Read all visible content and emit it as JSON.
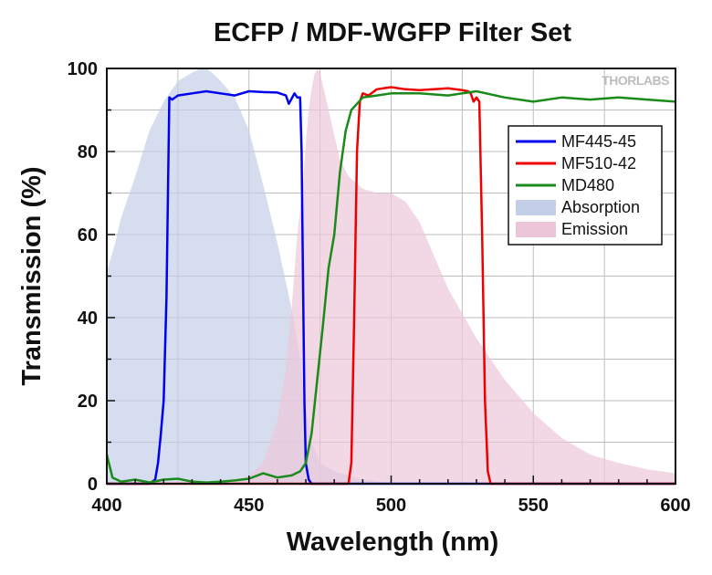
{
  "colors": {
    "MF445-45": "#0000ee",
    "MF510-42": "#ee0000",
    "MD480": "#1a8a1a",
    "Absorption": "#c3cfe8",
    "Emission": "#ecc6d8",
    "grid": "#bdbdbd"
  },
  "chart_data": {
    "type": "line",
    "title": "ECFP / MDF-WGFP Filter Set",
    "xlabel": "Wavelength (nm)",
    "ylabel": "Transmission (%)",
    "xlim": [
      400,
      600
    ],
    "ylim": [
      0,
      100
    ],
    "xticks": [
      400,
      450,
      500,
      550,
      600
    ],
    "yticks": [
      0,
      20,
      40,
      60,
      80,
      100
    ],
    "grid": true,
    "legend_position": "right",
    "watermark": "THORLABS",
    "series": [
      {
        "name": "MF445-45",
        "style": "line",
        "x": [
          400,
          415,
          417,
          418,
          419,
          420,
          421,
          421.5,
          422,
          423,
          425,
          430,
          435,
          440,
          445,
          450,
          455,
          460,
          463,
          464,
          466,
          467,
          468,
          468.5,
          469,
          469.5,
          470,
          471,
          472,
          600
        ],
        "y": [
          0,
          0,
          1,
          5,
          12,
          20,
          45,
          70,
          93,
          92.5,
          93.5,
          94,
          94.5,
          94,
          93.5,
          94.5,
          94.3,
          94.2,
          93.5,
          91.5,
          94,
          93,
          93,
          80,
          50,
          20,
          5,
          1,
          0,
          0
        ]
      },
      {
        "name": "MF510-42",
        "style": "line",
        "x": [
          400,
          485,
          486,
          487,
          488,
          489,
          490,
          492,
          495,
          500,
          505,
          510,
          515,
          520,
          525,
          527,
          528,
          529,
          530,
          531,
          532,
          533,
          534,
          535,
          600
        ],
        "y": [
          0,
          0,
          5,
          40,
          80,
          92,
          94,
          93.5,
          95,
          95.5,
          95,
          94.8,
          95,
          95.2,
          94.8,
          94.5,
          94,
          92,
          93,
          92,
          60,
          20,
          3,
          0,
          0
        ]
      },
      {
        "name": "MD480",
        "style": "line",
        "x": [
          400,
          402,
          405,
          410,
          415,
          420,
          425,
          430,
          435,
          440,
          445,
          450,
          455,
          460,
          465,
          468,
          470,
          472,
          474,
          476,
          478,
          480,
          482,
          484,
          486,
          488,
          490,
          495,
          500,
          510,
          520,
          530,
          540,
          550,
          560,
          570,
          580,
          590,
          600
        ],
        "y": [
          7,
          1.5,
          0.5,
          1,
          0.3,
          1,
          1.2,
          0.5,
          0.3,
          0.5,
          0.8,
          1.2,
          2.5,
          1.5,
          2.0,
          3.0,
          5,
          12,
          25,
          38,
          52,
          60,
          75,
          85,
          90,
          91.5,
          93,
          93.5,
          94,
          94,
          93.5,
          94.5,
          93,
          92,
          93,
          92.5,
          93,
          92.5,
          92
        ]
      },
      {
        "name": "Absorption",
        "style": "area",
        "x": [
          400,
          403,
          405,
          410,
          415,
          420,
          425,
          430,
          433,
          435,
          437,
          440,
          445,
          450,
          455,
          460,
          465,
          468,
          470,
          472,
          475,
          480,
          485,
          490,
          495,
          500
        ],
        "y": [
          51,
          58,
          64,
          74,
          85,
          92,
          97,
          99,
          100,
          100,
          99,
          97,
          93,
          85,
          72,
          58,
          42,
          30,
          18,
          10,
          5,
          3,
          2,
          1,
          0.5,
          0
        ]
      },
      {
        "name": "Emission",
        "style": "area",
        "x": [
          400,
          440,
          445,
          450,
          455,
          460,
          463,
          465,
          467,
          469,
          470,
          471,
          472,
          473,
          474,
          475,
          476,
          478,
          480,
          482,
          485,
          490,
          495,
          500,
          505,
          510,
          515,
          520,
          530,
          540,
          550,
          560,
          570,
          580,
          590,
          600
        ],
        "y": [
          0,
          0,
          0.5,
          2,
          5,
          15,
          28,
          42,
          60,
          72,
          82,
          90,
          95,
          98.5,
          100,
          99,
          96,
          90,
          84,
          78,
          74,
          71,
          70,
          70,
          68,
          63,
          55,
          47,
          35,
          25,
          17,
          11,
          7,
          5,
          3.5,
          2.5
        ]
      }
    ]
  }
}
